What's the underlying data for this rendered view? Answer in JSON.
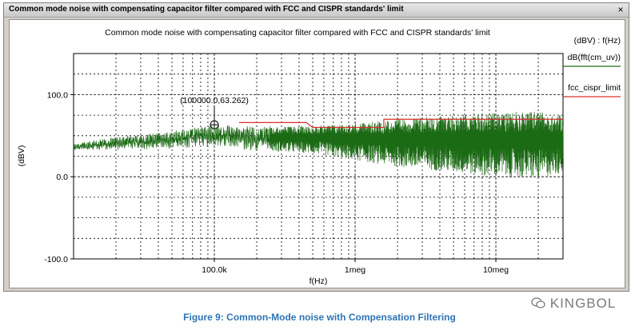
{
  "window": {
    "title": "Common mode noise with compensating capacitor filter compared with FCC and CISPR standards' limit",
    "close_label": "×"
  },
  "caption": "Figure 9: Common-Mode noise with Compensation Filtering",
  "watermark": {
    "text": "KINGBOL",
    "icon": "wechat-icon"
  },
  "colors": {
    "trace": "#1b6a14",
    "limit": "#d9302a",
    "grid": "#000000",
    "caption": "#2e74b5"
  },
  "chart_data": {
    "type": "line",
    "title": "Common mode noise with compensating capacitor filter compared with FCC and CISPR standards' limit",
    "xlabel": "f(Hz)",
    "ylabel": "(dBV)",
    "xscale": "log",
    "xlim": [
      10000,
      30000000
    ],
    "ylim": [
      -100,
      150
    ],
    "x_ticks": [
      {
        "value": 100000,
        "label": "100.0k"
      },
      {
        "value": 1000000,
        "label": "1meg"
      },
      {
        "value": 10000000,
        "label": "10meg"
      }
    ],
    "y_ticks": [
      {
        "value": 100,
        "label": "100.0"
      },
      {
        "value": 0,
        "label": "0.0"
      },
      {
        "value": -100,
        "label": "-100.0"
      }
    ],
    "legend_header": "(dBV) : f(Hz)",
    "legend_position": "right",
    "annotation": {
      "x": 100000,
      "y": 63.262,
      "label": "(100000.0,63.262)"
    },
    "series": [
      {
        "name": "dB(fft(cm_uv))",
        "color": "#1b6a14",
        "envelope": {
          "f": [
            10000,
            20000,
            50000,
            100000,
            200000,
            500000,
            1000000,
            2000000,
            5000000,
            10000000,
            20000000,
            30000000
          ],
          "upper": [
            40,
            48,
            55,
            63,
            60,
            62,
            65,
            70,
            75,
            78,
            80,
            75
          ],
          "lower": [
            32,
            33,
            35,
            38,
            32,
            28,
            20,
            12,
            5,
            0,
            -3,
            5
          ]
        }
      },
      {
        "name": "fcc_cispr_limit",
        "color": "#d9302a",
        "points": [
          {
            "x": 150000,
            "y": 66
          },
          {
            "x": 450000,
            "y": 66
          },
          {
            "x": 500000,
            "y": 60
          },
          {
            "x": 1600000,
            "y": 60
          },
          {
            "x": 1600000,
            "y": 70
          },
          {
            "x": 30000000,
            "y": 70
          }
        ]
      }
    ]
  }
}
